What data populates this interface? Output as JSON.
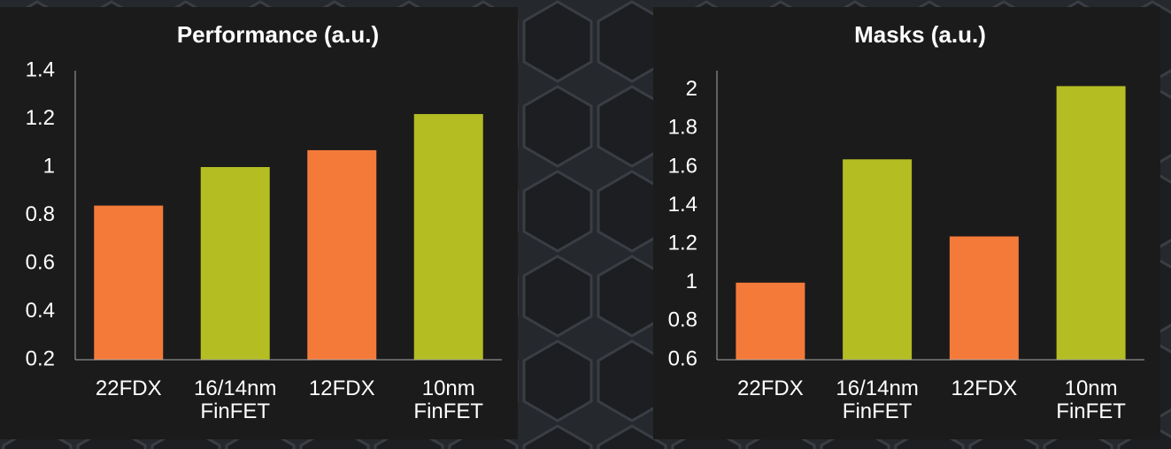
{
  "chart_data": [
    {
      "type": "bar",
      "title": "Performance (a.u.)",
      "categories": [
        "22FDX",
        "16/14nm FinFET",
        "12FDX",
        "10nm FinFET"
      ],
      "values": [
        0.84,
        1.0,
        1.07,
        1.22
      ],
      "colors": [
        "#f47a3a",
        "#b4bd22",
        "#f47a3a",
        "#b4bd22"
      ],
      "ylim": [
        0.2,
        1.4
      ],
      "yticks": [
        0.2,
        0.4,
        0.6,
        0.8,
        1,
        1.2,
        1.4
      ],
      "grid": false
    },
    {
      "type": "bar",
      "title": "Masks (a.u.)",
      "categories": [
        "22FDX",
        "16/14nm FinFET",
        "12FDX",
        "10nm FinFET"
      ],
      "values": [
        1.0,
        1.64,
        1.24,
        2.02
      ],
      "colors": [
        "#f47a3a",
        "#b4bd22",
        "#f47a3a",
        "#b4bd22"
      ],
      "ylim": [
        0.6,
        2.1
      ],
      "yticks": [
        0.6,
        0.8,
        1,
        1.2,
        1.4,
        1.6,
        1.8,
        2
      ],
      "grid": false
    }
  ]
}
